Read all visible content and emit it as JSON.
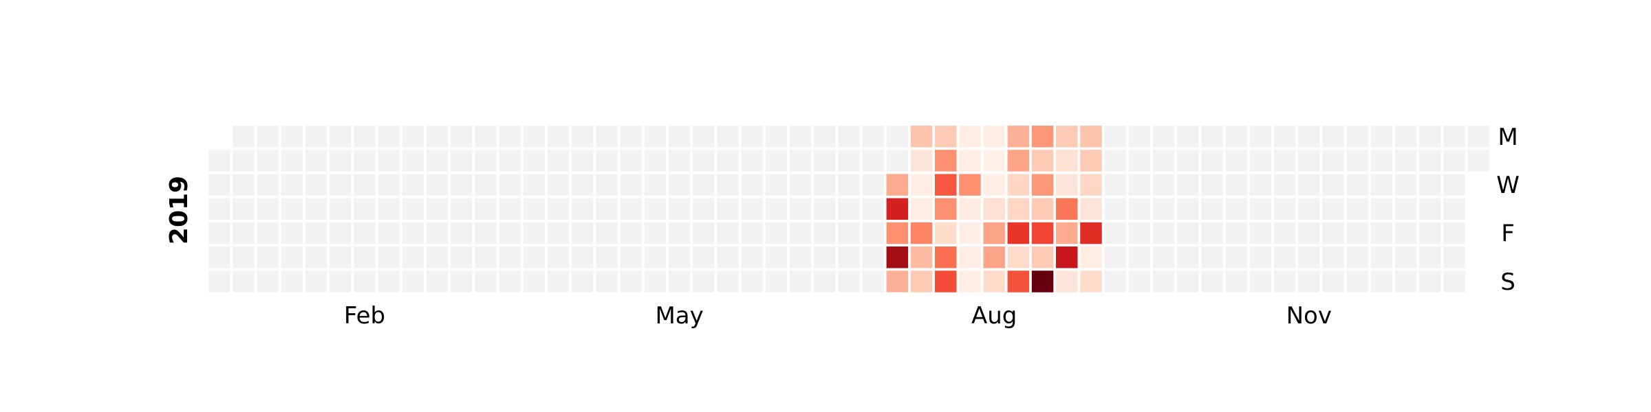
{
  "chart_data": {
    "type": "heatmap",
    "year_label": "2019",
    "month_labels": [
      {
        "label": "Feb",
        "week": 6
      },
      {
        "label": "May",
        "week": 19
      },
      {
        "label": "Aug",
        "week": 32
      },
      {
        "label": "Nov",
        "week": 45
      }
    ],
    "day_labels": [
      {
        "label": "M",
        "day": 0
      },
      {
        "label": "W",
        "day": 2
      },
      {
        "label": "F",
        "day": 4
      },
      {
        "label": "S",
        "day": 6
      }
    ],
    "first_day_offset": 1,
    "num_days": 365,
    "empty_color": "#f2f2f2",
    "colormap": [
      "#fff5f0",
      "#fee0d2",
      "#fcbba1",
      "#fc9272",
      "#fb6a4a",
      "#ef3b2c",
      "#cb181d",
      "#a50f15",
      "#67000d"
    ],
    "active_weeks": [
      {
        "week": 28,
        "levels": [
          null,
          null,
          0.3,
          0.72,
          0.38,
          0.88,
          0.28
        ]
      },
      {
        "week": 29,
        "levels": [
          0.22,
          0.1,
          0.05,
          0.05,
          0.42,
          0.25,
          0.2
        ]
      },
      {
        "week": 30,
        "levels": [
          0.2,
          0.38,
          0.55,
          0.38,
          0.14,
          0.48,
          0.58
        ]
      },
      {
        "week": 31,
        "levels": [
          0.05,
          0.04,
          0.38,
          0.06,
          0.04,
          0.05,
          0.04
        ]
      },
      {
        "week": 32,
        "levels": [
          0.04,
          0.03,
          0.04,
          0.12,
          0.32,
          0.32,
          0.14
        ]
      },
      {
        "week": 33,
        "levels": [
          0.28,
          0.32,
          0.16,
          0.16,
          0.65,
          0.14,
          0.56
        ]
      },
      {
        "week": 34,
        "levels": [
          0.36,
          0.2,
          0.36,
          0.2,
          0.6,
          0.2,
          1.0
        ]
      },
      {
        "week": 35,
        "levels": [
          0.2,
          0.12,
          0.1,
          0.46,
          0.3,
          0.76,
          0.1
        ]
      },
      {
        "week": 36,
        "levels": [
          0.22,
          0.2,
          0.16,
          0.1,
          0.68,
          0.05,
          0.14
        ]
      }
    ]
  }
}
